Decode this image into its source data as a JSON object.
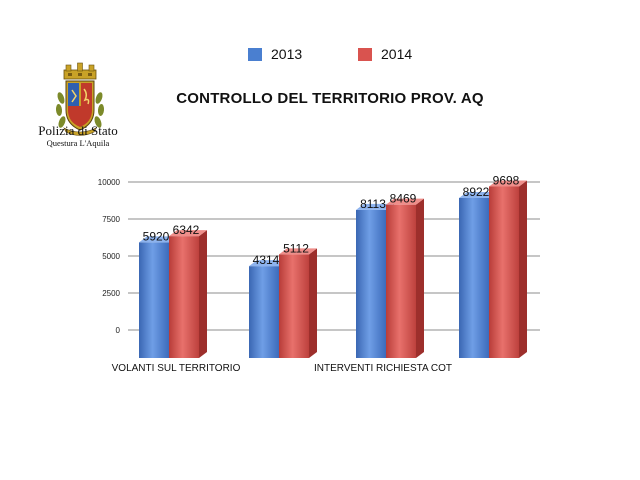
{
  "header": {
    "logo_title": "Polizia di Stato",
    "logo_subtitle": "Questura L'Aquila"
  },
  "colors": {
    "series_2013": "#4a7fd0",
    "series_2014": "#d9534f",
    "grid": "#8c8c8c"
  },
  "chart_data": {
    "type": "bar",
    "title": "CONTROLLO DEL TERRITORIO PROV. AQ",
    "categories": [
      "VOLANTI SUL TERRITORIO",
      "",
      "INTERVENTI RICHIESTA COT",
      ""
    ],
    "series": [
      {
        "name": "2013",
        "values": [
          5920,
          4314,
          8113,
          8922
        ]
      },
      {
        "name": "2014",
        "values": [
          6342,
          5112,
          8469,
          9698
        ]
      }
    ],
    "data_labels_2013": [
      "5920",
      "4314",
      "8113",
      "8922"
    ],
    "data_labels_2014": [
      "6342",
      "5112",
      "8469",
      "9698"
    ],
    "y_ticks": [
      0,
      2500,
      5000,
      7500,
      10000
    ],
    "y_tick_labels": [
      "0",
      "2500",
      "5000",
      "7500",
      "10000"
    ],
    "ylim": [
      0,
      10000
    ],
    "grid": true,
    "legend_position": "top",
    "three_d": true
  }
}
